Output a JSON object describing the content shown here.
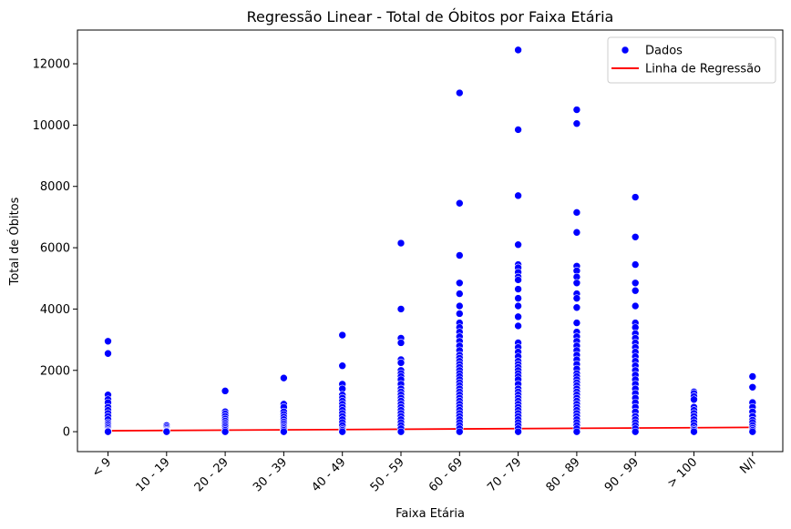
{
  "chart_data": {
    "type": "scatter",
    "title": "Regressão Linear - Total de Óbitos por Faixa Etária",
    "xlabel": "Faixa Etária",
    "ylabel": "Total de Óbitos",
    "categories": [
      "< 9",
      "10 - 19",
      "20 - 29",
      "30 - 39",
      "40 - 49",
      "50 - 59",
      "60 - 69",
      "70 - 79",
      "80 - 89",
      "90 - 99",
      "> 100",
      "N/I"
    ],
    "ylim": [
      -650,
      13100
    ],
    "yticks": [
      0,
      2000,
      4000,
      6000,
      8000,
      10000,
      12000
    ],
    "grid": false,
    "legend_position": "top-right",
    "legend": [
      "Dados",
      "Linha de Regressão"
    ],
    "colors": {
      "points": "#0000ff",
      "regression": "#ff0000"
    },
    "series": [
      {
        "name": "Dados",
        "kind": "scatter",
        "points": {
          "< 9": [
            2950,
            2550,
            1200,
            1050,
            950,
            800,
            700,
            600,
            500,
            400,
            300,
            250,
            200,
            150,
            100,
            50,
            20,
            0
          ],
          "10 - 19": [
            200,
            150,
            100,
            60,
            30,
            10,
            0
          ],
          "20 - 29": [
            1330,
            650,
            580,
            500,
            420,
            350,
            280,
            220,
            160,
            100,
            50,
            0
          ],
          "30 - 39": [
            1750,
            900,
            800,
            650,
            560,
            480,
            400,
            320,
            260,
            200,
            150,
            100,
            50,
            0
          ],
          "40 - 49": [
            3150,
            2150,
            1550,
            1400,
            1200,
            1100,
            1000,
            900,
            800,
            700,
            600,
            500,
            400,
            300,
            200,
            100,
            50,
            0
          ],
          "50 - 59": [
            6150,
            4000,
            3050,
            2900,
            2350,
            2250,
            2000,
            1900,
            1800,
            1700,
            1550,
            1400,
            1300,
            1200,
            1100,
            1000,
            900,
            800,
            700,
            600,
            500,
            400,
            300,
            200,
            100,
            0
          ],
          "60 - 69": [
            11050,
            7450,
            5750,
            4850,
            4500,
            4100,
            3850,
            3550,
            3400,
            3250,
            3100,
            2950,
            2800,
            2650,
            2500,
            2400,
            2300,
            2200,
            2100,
            2000,
            1900,
            1800,
            1700,
            1600,
            1500,
            1400,
            1300,
            1200,
            1100,
            1000,
            900,
            800,
            700,
            600,
            500,
            400,
            300,
            200,
            100,
            0
          ],
          "70 - 79": [
            12450,
            9850,
            7700,
            6100,
            5450,
            5350,
            5200,
            5050,
            4950,
            4650,
            4350,
            4100,
            3750,
            3450,
            2900,
            2750,
            2600,
            2450,
            2300,
            2200,
            2100,
            2000,
            1900,
            1800,
            1700,
            1550,
            1400,
            1300,
            1200,
            1100,
            1000,
            900,
            800,
            700,
            600,
            500,
            400,
            300,
            200,
            100,
            0
          ],
          "80 - 89": [
            10500,
            10050,
            7150,
            6500,
            5400,
            5250,
            5050,
            4850,
            4500,
            4350,
            4050,
            3550,
            3250,
            3100,
            2950,
            2800,
            2650,
            2500,
            2350,
            2200,
            2050,
            1900,
            1800,
            1700,
            1600,
            1500,
            1400,
            1300,
            1200,
            1100,
            1000,
            900,
            800,
            700,
            600,
            500,
            400,
            300,
            200,
            100,
            0
          ],
          "90 - 99": [
            7650,
            6350,
            5450,
            4850,
            4600,
            4100,
            3550,
            3400,
            3200,
            3050,
            2900,
            2750,
            2600,
            2450,
            2300,
            2150,
            2000,
            1850,
            1700,
            1550,
            1400,
            1250,
            1100,
            950,
            800,
            650,
            500,
            400,
            300,
            200,
            100,
            0
          ],
          "> 100": [
            1300,
            1250,
            1150,
            1050,
            800,
            700,
            600,
            500,
            400,
            300,
            200,
            100,
            50,
            0
          ],
          "N/I": [
            1800,
            1450,
            950,
            800,
            650,
            500,
            380,
            300,
            200,
            120,
            50,
            0
          ]
        }
      },
      {
        "name": "Linha de Regressão",
        "kind": "line",
        "y_start": 30,
        "y_end": 140
      }
    ]
  }
}
